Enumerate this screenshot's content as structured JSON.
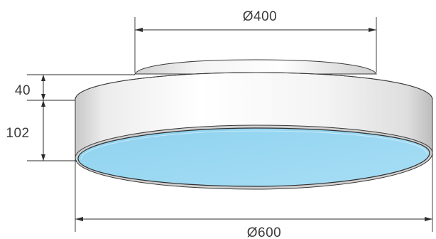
{
  "dimensions": {
    "top_diameter": "Ø400",
    "bottom_diameter": "Ø600",
    "top_height": "40",
    "body_height": "102"
  },
  "colors": {
    "diffuser": "#9ad8f2",
    "body_light": "#ffffff",
    "body_shadow": "#d9d9d9",
    "line": "#2b2b2b"
  }
}
